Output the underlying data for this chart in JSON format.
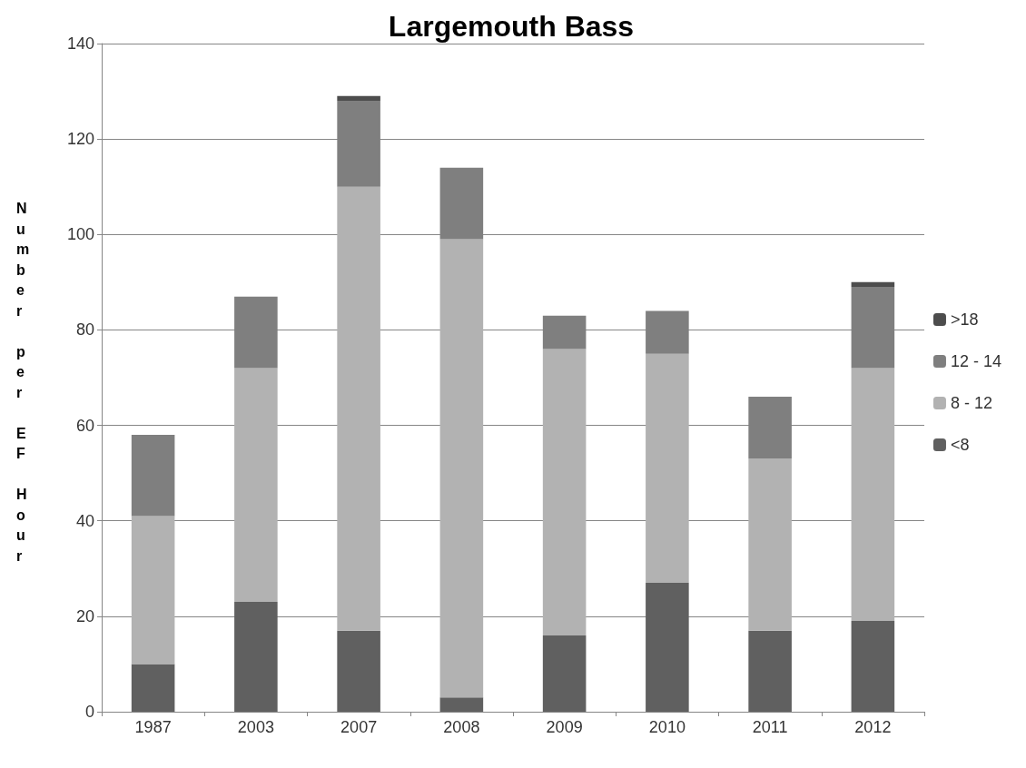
{
  "chart_data": {
    "type": "bar",
    "title": "Largemouth Bass",
    "ylabel": "Number per EF Hour",
    "categories": [
      "1987",
      "2003",
      "2007",
      "2008",
      "2009",
      "2010",
      "2011",
      "2012"
    ],
    "series": [
      {
        "name": "<8",
        "color": "#606060",
        "values": [
          10,
          23,
          17,
          3,
          16,
          27,
          17,
          19
        ]
      },
      {
        "name": "8 - 12",
        "color": "#b2b2b2",
        "values": [
          31,
          49,
          93,
          96,
          60,
          48,
          36,
          53
        ]
      },
      {
        "name": "12 - 14",
        "color": "#7f7f7f",
        "values": [
          17,
          15,
          18,
          15,
          7,
          9,
          13,
          17
        ]
      },
      {
        "name": ">18",
        "color": "#4d4d4d",
        "values": [
          0,
          0,
          1,
          0,
          0,
          0,
          0,
          1
        ]
      }
    ],
    "stacked": true,
    "ylim": [
      0,
      140
    ],
    "yticks": [
      0,
      20,
      40,
      60,
      80,
      100,
      120,
      140
    ],
    "grid": "y",
    "legend": "right"
  }
}
